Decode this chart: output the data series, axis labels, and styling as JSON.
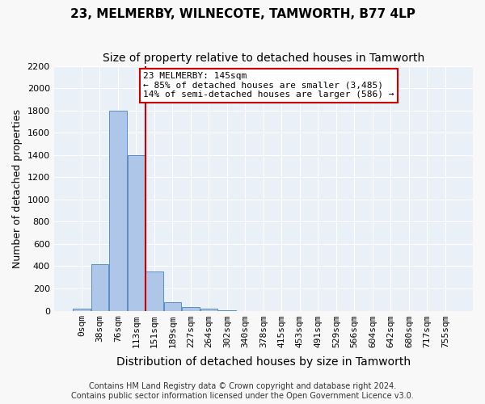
{
  "title": "23, MELMERBY, WILNECOTE, TAMWORTH, B77 4LP",
  "subtitle": "Size of property relative to detached houses in Tamworth",
  "xlabel": "Distribution of detached houses by size in Tamworth",
  "ylabel": "Number of detached properties",
  "bin_labels": [
    "0sqm",
    "38sqm",
    "76sqm",
    "113sqm",
    "151sqm",
    "189sqm",
    "227sqm",
    "264sqm",
    "302sqm",
    "340sqm",
    "378sqm",
    "415sqm",
    "453sqm",
    "491sqm",
    "529sqm",
    "566sqm",
    "604sqm",
    "642sqm",
    "680sqm",
    "717sqm",
    "755sqm"
  ],
  "bar_values": [
    15,
    420,
    1800,
    1400,
    350,
    80,
    35,
    20,
    5,
    0,
    0,
    0,
    0,
    0,
    0,
    0,
    0,
    0,
    0,
    0,
    0
  ],
  "bar_color": "#aec6e8",
  "bar_edge_color": "#5a8fc0",
  "property_line_bin": 4,
  "property_value": 145,
  "annotation_line1": "23 MELMERBY: 145sqm",
  "annotation_line2": "← 85% of detached houses are smaller (3,485)",
  "annotation_line3": "14% of semi-detached houses are larger (586) →",
  "annotation_box_color": "#ffffff",
  "annotation_box_edge_color": "#cc0000",
  "red_line_color": "#cc0000",
  "ylim": [
    0,
    2200
  ],
  "yticks": [
    0,
    200,
    400,
    600,
    800,
    1000,
    1200,
    1400,
    1600,
    1800,
    2000,
    2200
  ],
  "background_color": "#eaf0f8",
  "grid_color": "#ffffff",
  "footer_line1": "Contains HM Land Registry data © Crown copyright and database right 2024.",
  "footer_line2": "Contains public sector information licensed under the Open Government Licence v3.0.",
  "title_fontsize": 11,
  "subtitle_fontsize": 10,
  "axis_label_fontsize": 9,
  "tick_fontsize": 8,
  "annotation_fontsize": 8,
  "footer_fontsize": 7
}
